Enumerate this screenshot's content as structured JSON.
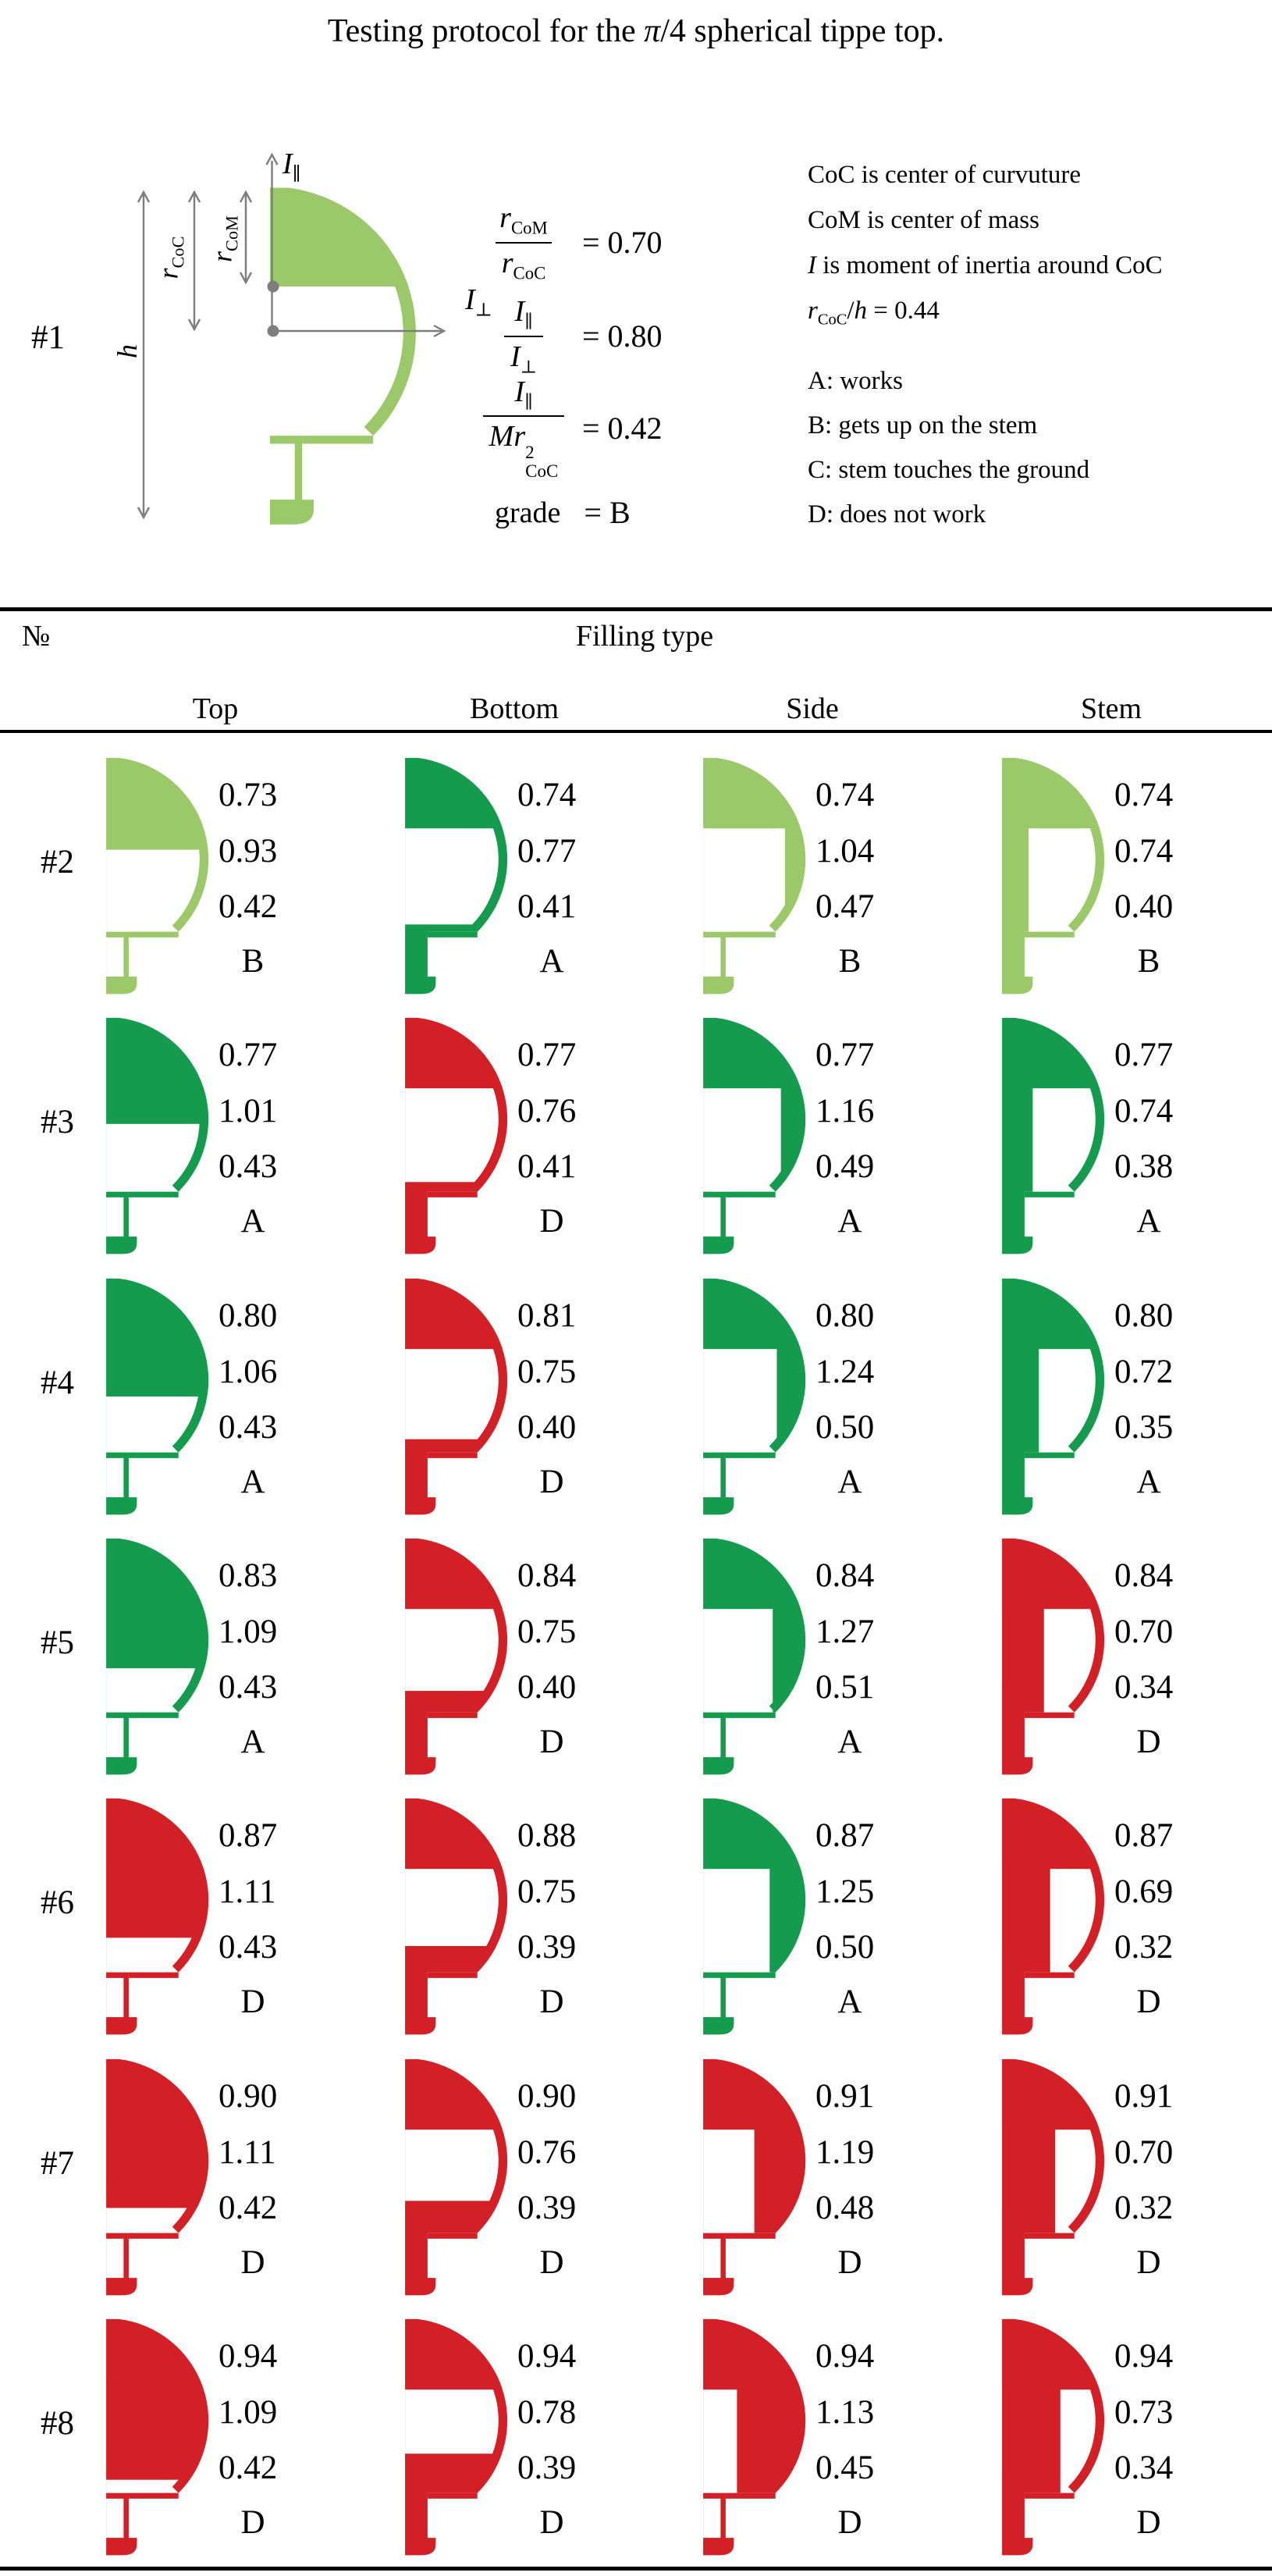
{
  "title": {
    "pre": "Testing protocol for the ",
    "pi": "π",
    "post": "/4 spherical tippe top."
  },
  "example": {
    "label": "#1",
    "icon": {
      "fill": "top",
      "cap": 0.295,
      "grade": "B"
    },
    "dims": {
      "h": "h",
      "rcoc_base": "r",
      "rcoc_sub": "CoC",
      "rcom_base": "r",
      "rcom_sub": "CoM"
    },
    "axes": {
      "ipar_base": "I",
      "ipar_sub": "∥",
      "iperp_base": "I",
      "iperp_sub": "⊥"
    },
    "f1": {
      "num_main": "r",
      "num_sub": "CoM",
      "den_main": "r",
      "den_sub": "CoC",
      "result": "= 0.70"
    },
    "f2": {
      "num_main": "I",
      "num_sub": "∥",
      "den_main": "I",
      "den_sub": "⊥",
      "result": "= 0.80"
    },
    "f3": {
      "num_main": "I",
      "num_sub": "∥",
      "den_pre": "Mr",
      "den_sup": "2",
      "den_sub": "CoC",
      "result": "= 0.42"
    },
    "f4": {
      "label": "grade",
      "result": "= B"
    }
  },
  "legend": {
    "line1": "CoC is center of curvuture",
    "line2": "CoM is center of mass",
    "line3_italic": "I",
    "line3_rest": " is moment of inertia around CoC",
    "line4_base": "r",
    "line4_sub": "CoC",
    "line4_mid": "/",
    "line4_h": "h",
    "line4_rest": " = 0.44",
    "grades": [
      "A: works",
      "B: gets up on the stem",
      "C: stem touches the ground",
      "D: does not work"
    ]
  },
  "table": {
    "no_header": "№",
    "group_header": "Filling type",
    "columns": [
      "Top",
      "Bottom",
      "Side",
      "Stem"
    ],
    "rows": [
      {
        "label": "#2",
        "cells": [
          {
            "fill": "top",
            "cap": 0.39,
            "param": 0,
            "values": [
              "0.73",
              "0.93",
              "0.42"
            ],
            "grade": "B"
          },
          {
            "fill": "bottom",
            "cap": 0.3,
            "param": 0.705,
            "values": [
              "0.74",
              "0.77",
              "0.41"
            ],
            "grade": "A"
          },
          {
            "fill": "side",
            "cap": 0.3,
            "param": 0.8,
            "values": [
              "0.74",
              "1.04",
              "0.47"
            ],
            "grade": "B"
          },
          {
            "fill": "stem",
            "cap": 0.3,
            "param": 0.26,
            "values": [
              "0.74",
              "0.74",
              "0.40"
            ],
            "grade": "B"
          }
        ]
      },
      {
        "label": "#3",
        "cells": [
          {
            "fill": "top",
            "cap": 0.45,
            "param": 0,
            "values": [
              "0.77",
              "1.01",
              "0.43"
            ],
            "grade": "A"
          },
          {
            "fill": "bottom",
            "cap": 0.3,
            "param": 0.695,
            "values": [
              "0.77",
              "0.76",
              "0.41"
            ],
            "grade": "D"
          },
          {
            "fill": "side",
            "cap": 0.3,
            "param": 0.76,
            "values": [
              "0.77",
              "1.16",
              "0.49"
            ],
            "grade": "A"
          },
          {
            "fill": "stem",
            "cap": 0.3,
            "param": 0.3,
            "values": [
              "0.77",
              "0.74",
              "0.38"
            ],
            "grade": "A"
          }
        ]
      },
      {
        "label": "#4",
        "cells": [
          {
            "fill": "top",
            "cap": 0.5,
            "param": 0,
            "values": [
              "0.80",
              "1.06",
              "0.43"
            ],
            "grade": "A"
          },
          {
            "fill": "bottom",
            "cap": 0.3,
            "param": 0.68,
            "values": [
              "0.81",
              "0.75",
              "0.40"
            ],
            "grade": "D"
          },
          {
            "fill": "side",
            "cap": 0.3,
            "param": 0.72,
            "values": [
              "0.80",
              "1.24",
              "0.50"
            ],
            "grade": "A"
          },
          {
            "fill": "stem",
            "cap": 0.3,
            "param": 0.36,
            "values": [
              "0.80",
              "0.72",
              "0.35"
            ],
            "grade": "A"
          }
        ]
      },
      {
        "label": "#5",
        "cells": [
          {
            "fill": "top",
            "cap": 0.55,
            "param": 0,
            "values": [
              "0.83",
              "1.09",
              "0.43"
            ],
            "grade": "A"
          },
          {
            "fill": "bottom",
            "cap": 0.3,
            "param": 0.645,
            "values": [
              "0.84",
              "0.75",
              "0.40"
            ],
            "grade": "D"
          },
          {
            "fill": "side",
            "cap": 0.3,
            "param": 0.68,
            "values": [
              "0.84",
              "1.27",
              "0.51"
            ],
            "grade": "A"
          },
          {
            "fill": "stem",
            "cap": 0.3,
            "param": 0.41,
            "values": [
              "0.84",
              "0.70",
              "0.34"
            ],
            "grade": "D"
          }
        ]
      },
      {
        "label": "#6",
        "cells": [
          {
            "fill": "top",
            "cap": 0.59,
            "param": 0,
            "values": [
              "0.87",
              "1.11",
              "0.43"
            ],
            "grade": "D"
          },
          {
            "fill": "bottom",
            "cap": 0.3,
            "param": 0.625,
            "values": [
              "0.88",
              "0.75",
              "0.39"
            ],
            "grade": "D"
          },
          {
            "fill": "side",
            "cap": 0.3,
            "param": 0.65,
            "values": [
              "0.87",
              "1.25",
              "0.50"
            ],
            "grade": "A"
          },
          {
            "fill": "stem",
            "cap": 0.3,
            "param": 0.47,
            "values": [
              "0.87",
              "0.69",
              "0.32"
            ],
            "grade": "D"
          }
        ]
      },
      {
        "label": "#7",
        "cells": [
          {
            "fill": "top",
            "cap": 0.63,
            "param": 0,
            "values": [
              "0.90",
              "1.11",
              "0.42"
            ],
            "grade": "D"
          },
          {
            "fill": "bottom",
            "cap": 0.3,
            "param": 0.6,
            "values": [
              "0.90",
              "0.76",
              "0.39"
            ],
            "grade": "D"
          },
          {
            "fill": "side",
            "cap": 0.3,
            "param": 0.5,
            "values": [
              "0.91",
              "1.19",
              "0.48"
            ],
            "grade": "D"
          },
          {
            "fill": "stem",
            "cap": 0.3,
            "param": 0.52,
            "values": [
              "0.91",
              "0.70",
              "0.32"
            ],
            "grade": "D"
          }
        ]
      },
      {
        "label": "#8",
        "cells": [
          {
            "fill": "top",
            "cap": 0.68,
            "param": 0,
            "values": [
              "0.94",
              "1.09",
              "0.42"
            ],
            "grade": "D"
          },
          {
            "fill": "bottom",
            "cap": 0.3,
            "param": 0.57,
            "values": [
              "0.94",
              "0.78",
              "0.39"
            ],
            "grade": "D"
          },
          {
            "fill": "side",
            "cap": 0.3,
            "param": 0.33,
            "values": [
              "0.94",
              "1.13",
              "0.45"
            ],
            "grade": "D"
          },
          {
            "fill": "stem",
            "cap": 0.3,
            "param": 0.57,
            "values": [
              "0.94",
              "0.73",
              "0.34"
            ],
            "grade": "D"
          }
        ]
      }
    ]
  },
  "colors": {
    "grade_A": "#149B4D",
    "grade_B": "#9BC868",
    "grade_D": "#D32026",
    "annotation_gray": "#7d7d7d",
    "text": "#000000"
  }
}
